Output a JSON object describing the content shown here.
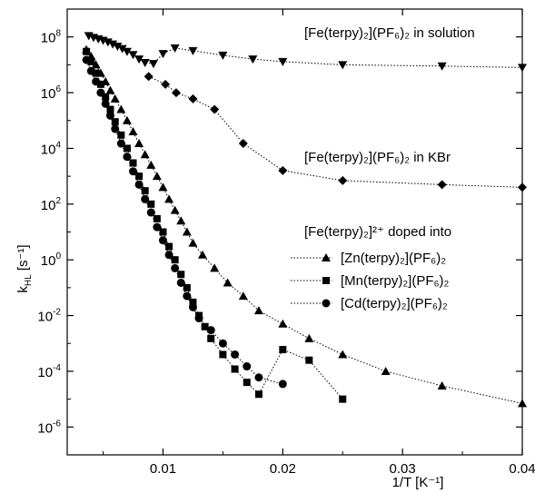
{
  "chart_data": {
    "type": "line",
    "xlabel": "1/T  [K⁻¹]",
    "ylabel": "k",
    "ylabel_sub": "HL",
    "ylabel_unit": " [s⁻¹]",
    "xlim": [
      0.002,
      0.04
    ],
    "ylim": [
      1e-07,
      1000000000.0
    ],
    "yscale": "log",
    "grid": false,
    "x_ticks": [
      {
        "value": 0.01,
        "label": "0.01"
      },
      {
        "value": 0.02,
        "label": "0.02"
      },
      {
        "value": 0.03,
        "label": "0.03"
      },
      {
        "value": 0.04,
        "label": "0.04"
      }
    ],
    "y_ticks": [
      {
        "value": 100000000.0,
        "base": "10",
        "exp": "8"
      },
      {
        "value": 1000000.0,
        "base": "10",
        "exp": "6"
      },
      {
        "value": 10000.0,
        "base": "10",
        "exp": "4"
      },
      {
        "value": 100.0,
        "base": "10",
        "exp": "2"
      },
      {
        "value": 1,
        "base": "10",
        "exp": "0"
      },
      {
        "value": 0.01,
        "base": "10",
        "exp": "-2"
      },
      {
        "value": 0.0001,
        "base": "10",
        "exp": "-4"
      },
      {
        "value": 1e-06,
        "base": "10",
        "exp": "-6"
      }
    ],
    "annotations": {
      "solution": "[Fe(terpy)₂](PF₆)₂ in solution",
      "kbr": "[Fe(terpy)₂](PF₆)₂ in KBr",
      "doped": "[Fe(terpy)₂]²⁺ doped into"
    },
    "series": [
      {
        "name": "",
        "marker": "triangle-down",
        "points": [
          [
            0.0038,
            110000000.0
          ],
          [
            0.0042,
            95000000.0
          ],
          [
            0.0046,
            85000000.0
          ],
          [
            0.005,
            75000000.0
          ],
          [
            0.0054,
            65000000.0
          ],
          [
            0.0058,
            55000000.0
          ],
          [
            0.0062,
            46000000.0
          ],
          [
            0.0066,
            38000000.0
          ],
          [
            0.007,
            30000000.0
          ],
          [
            0.0075,
            23000000.0
          ],
          [
            0.008,
            16000000.0
          ],
          [
            0.0085,
            12000000.0
          ],
          [
            0.0092,
            11000000.0
          ],
          [
            0.01,
            25000000.0
          ],
          [
            0.011,
            40000000.0
          ],
          [
            0.0125,
            32000000.0
          ],
          [
            0.015,
            22000000.0
          ],
          [
            0.0175,
            16000000.0
          ],
          [
            0.02,
            13000000.0
          ],
          [
            0.025,
            10000000.0
          ],
          [
            0.0333,
            9000000.0
          ],
          [
            0.04,
            8000000.0
          ]
        ]
      },
      {
        "name": "",
        "marker": "diamond",
        "points": [
          [
            0.0088,
            3800000.0
          ],
          [
            0.0102,
            2000000.0
          ],
          [
            0.0111,
            1000000.0
          ],
          [
            0.0125,
            600000.0
          ],
          [
            0.0143,
            250000.0
          ],
          [
            0.0167,
            15000.0
          ],
          [
            0.02,
            1600.0
          ],
          [
            0.025,
            700
          ],
          [
            0.0333,
            500
          ],
          [
            0.04,
            400
          ]
        ]
      },
      {
        "name": "[Zn(terpy)₂](PF₆)₂",
        "marker": "triangle",
        "points": [
          [
            0.0036,
            35000000.0
          ],
          [
            0.004,
            20000000.0
          ],
          [
            0.0044,
            10000000.0
          ],
          [
            0.0048,
            5000000.0
          ],
          [
            0.0052,
            2500000.0
          ],
          [
            0.0056,
            1200000.0
          ],
          [
            0.006,
            600000.0
          ],
          [
            0.0065,
            250000.0
          ],
          [
            0.007,
            100000.0
          ],
          [
            0.0075,
            40000.0
          ],
          [
            0.008,
            15000.0
          ],
          [
            0.0085,
            6000.0
          ],
          [
            0.009,
            2500.0
          ],
          [
            0.0095,
            1000.0
          ],
          [
            0.01,
            400
          ],
          [
            0.0105,
            150
          ],
          [
            0.011,
            60
          ],
          [
            0.0115,
            25
          ],
          [
            0.012,
            10
          ],
          [
            0.0125,
            4
          ],
          [
            0.0133,
            1.5
          ],
          [
            0.0143,
            0.5
          ],
          [
            0.0154,
            0.15
          ],
          [
            0.0167,
            0.05
          ],
          [
            0.018,
            0.015
          ],
          [
            0.02,
            0.005
          ],
          [
            0.0222,
            0.0015
          ],
          [
            0.025,
            0.0004
          ],
          [
            0.0286,
            0.0001
          ],
          [
            0.0333,
            3e-05
          ],
          [
            0.04,
            7e-06
          ]
        ]
      },
      {
        "name": "[Mn(terpy)₂](PF₆)₂",
        "marker": "square",
        "points": [
          [
            0.0036,
            30000000.0
          ],
          [
            0.004,
            13000000.0
          ],
          [
            0.0044,
            5000000.0
          ],
          [
            0.0048,
            2000000.0
          ],
          [
            0.0052,
            700000.0
          ],
          [
            0.0056,
            250000.0
          ],
          [
            0.006,
            90000.0
          ],
          [
            0.0065,
            30000.0
          ],
          [
            0.007,
            10000.0
          ],
          [
            0.0075,
            3000.0
          ],
          [
            0.008,
            1000.0
          ],
          [
            0.0085,
            300
          ],
          [
            0.009,
            100
          ],
          [
            0.0095,
            30
          ],
          [
            0.01,
            10
          ],
          [
            0.0105,
            3
          ],
          [
            0.011,
            1
          ],
          [
            0.0115,
            0.3
          ],
          [
            0.012,
            0.1
          ],
          [
            0.0125,
            0.03
          ],
          [
            0.013,
            0.01
          ],
          [
            0.0135,
            0.004
          ],
          [
            0.014,
            0.0015
          ],
          [
            0.015,
            0.0004
          ],
          [
            0.016,
            0.00012
          ],
          [
            0.017,
            4e-05
          ],
          [
            0.018,
            1.5e-05
          ],
          [
            0.02,
            0.0006
          ],
          [
            0.0222,
            0.00025
          ],
          [
            0.025,
            1e-05
          ]
        ]
      },
      {
        "name": "[Cd(terpy)₂](PF₆)₂",
        "marker": "circle",
        "points": [
          [
            0.0036,
            15000000.0
          ],
          [
            0.004,
            6000000.0
          ],
          [
            0.0044,
            2500000.0
          ],
          [
            0.0048,
            1000000.0
          ],
          [
            0.0052,
            400000.0
          ],
          [
            0.0056,
            150000.0
          ],
          [
            0.006,
            50000.0
          ],
          [
            0.0065,
            15000.0
          ],
          [
            0.007,
            5000.0
          ],
          [
            0.0075,
            1500.0
          ],
          [
            0.008,
            500
          ],
          [
            0.0085,
            150
          ],
          [
            0.009,
            50
          ],
          [
            0.0095,
            15
          ],
          [
            0.01,
            5
          ],
          [
            0.0105,
            1.5
          ],
          [
            0.011,
            0.5
          ],
          [
            0.0115,
            0.15
          ],
          [
            0.012,
            0.05
          ],
          [
            0.0125,
            0.02
          ],
          [
            0.013,
            0.008
          ],
          [
            0.014,
            0.003
          ],
          [
            0.015,
            0.001
          ],
          [
            0.016,
            0.0004
          ],
          [
            0.017,
            0.00015
          ],
          [
            0.018,
            6e-05
          ],
          [
            0.02,
            3.5e-05
          ]
        ]
      }
    ]
  }
}
